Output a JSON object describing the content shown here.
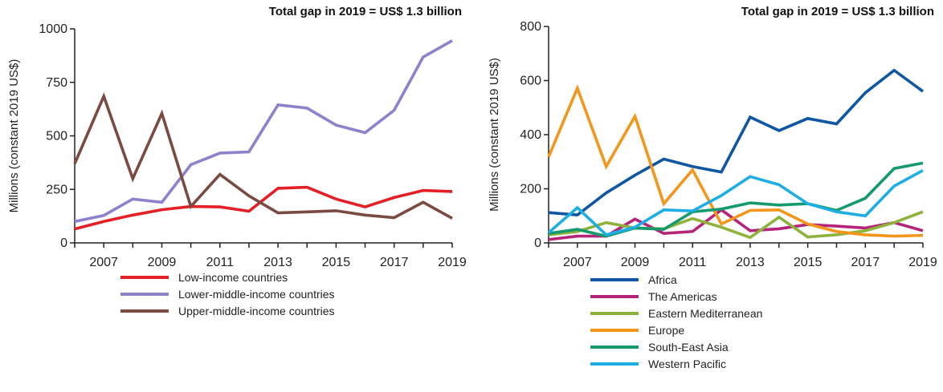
{
  "chart_data": [
    {
      "type": "line",
      "title": "Total gap in 2019 = US$ 1.3 billion",
      "xlabel": "",
      "ylabel": "Millions (constant 2019 US$)",
      "ylim": [
        0,
        1000
      ],
      "yticks": [
        0,
        250,
        500,
        750,
        1000
      ],
      "xlim": [
        2006,
        2019
      ],
      "xticks": [
        2007,
        2009,
        2011,
        2013,
        2015,
        2017,
        2019
      ],
      "x": [
        2006,
        2007,
        2008,
        2009,
        2010,
        2011,
        2012,
        2013,
        2014,
        2015,
        2016,
        2017,
        2018,
        2019
      ],
      "legend": "bottom",
      "grid": false,
      "series": [
        {
          "name": "Low-income countries",
          "color": "#e41f26",
          "values": [
            65,
            100,
            130,
            155,
            170,
            168,
            148,
            255,
            260,
            205,
            168,
            212,
            245,
            240
          ]
        },
        {
          "name": "Lower-middle-income countries",
          "color": "#8c83cc",
          "values": [
            100,
            128,
            205,
            190,
            365,
            420,
            425,
            645,
            630,
            550,
            515,
            620,
            868,
            945
          ]
        },
        {
          "name": "Upper-middle-income countries",
          "color": "#7b4a42",
          "values": [
            370,
            685,
            300,
            605,
            170,
            320,
            220,
            140,
            145,
            150,
            130,
            118,
            190,
            115
          ]
        }
      ]
    },
    {
      "type": "line",
      "title": "Total gap in 2019 = US$ 1.3 billion",
      "xlabel": "",
      "ylabel": "Millions (constant 2019 US$)",
      "ylim": [
        0,
        800
      ],
      "yticks": [
        0,
        200,
        400,
        600,
        800
      ],
      "xlim": [
        2006,
        2019
      ],
      "xticks": [
        2007,
        2009,
        2011,
        2013,
        2015,
        2017,
        2019
      ],
      "x": [
        2006,
        2007,
        2008,
        2009,
        2010,
        2011,
        2012,
        2013,
        2014,
        2015,
        2016,
        2017,
        2018,
        2019
      ],
      "legend": "bottom",
      "grid": false,
      "series": [
        {
          "name": "Africa",
          "color": "#0f56a3",
          "values": [
            112,
            103,
            185,
            250,
            310,
            282,
            262,
            465,
            415,
            460,
            440,
            555,
            638,
            560
          ]
        },
        {
          "name": "The Americas",
          "color": "#b6247a",
          "values": [
            12,
            25,
            25,
            88,
            35,
            42,
            122,
            45,
            52,
            68,
            62,
            55,
            75,
            45
          ]
        },
        {
          "name": "Eastern Mediterranean",
          "color": "#8db33c",
          "values": [
            30,
            42,
            75,
            55,
            52,
            90,
            58,
            20,
            95,
            22,
            30,
            45,
            75,
            115
          ]
        },
        {
          "name": "Europe",
          "color": "#f3961c",
          "values": [
            318,
            572,
            282,
            468,
            145,
            270,
            70,
            120,
            122,
            70,
            42,
            30,
            25,
            28
          ]
        },
        {
          "name": "South-East Asia",
          "color": "#149a6c",
          "values": [
            35,
            50,
            25,
            55,
            50,
            115,
            125,
            148,
            140,
            145,
            120,
            165,
            275,
            295
          ]
        },
        {
          "name": "Western Pacific",
          "color": "#1faee3",
          "values": [
            38,
            130,
            30,
            58,
            122,
            118,
            175,
            245,
            215,
            145,
            115,
            100,
            210,
            268
          ]
        }
      ]
    }
  ]
}
